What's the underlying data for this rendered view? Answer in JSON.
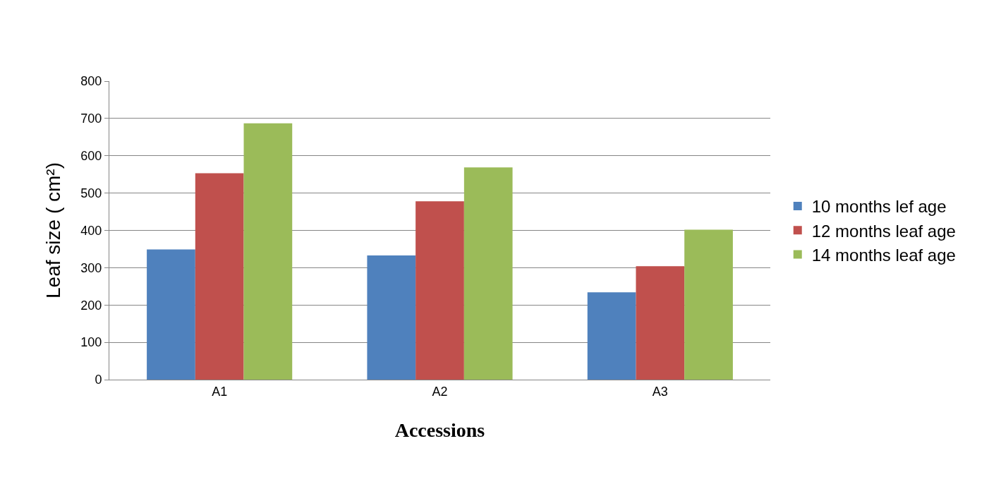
{
  "chart_data": {
    "type": "bar",
    "xlabel": "Accessions",
    "ylabel": "Leaf size ( cm²)",
    "categories": [
      "A1",
      "A2",
      "A3"
    ],
    "series": [
      {
        "name": "10 months lef age",
        "color": "#4f81bd",
        "values": [
          349,
          333,
          234
        ]
      },
      {
        "name": "12 months leaf age",
        "color": "#c0504d",
        "values": [
          553,
          478,
          304
        ]
      },
      {
        "name": "14 months leaf age",
        "color": "#9bbb59",
        "values": [
          687,
          569,
          402
        ]
      }
    ],
    "ylim": [
      0,
      800
    ],
    "yticks": [
      0,
      100,
      200,
      300,
      400,
      500,
      600,
      700,
      800
    ],
    "grid": "y",
    "legend": "right"
  }
}
